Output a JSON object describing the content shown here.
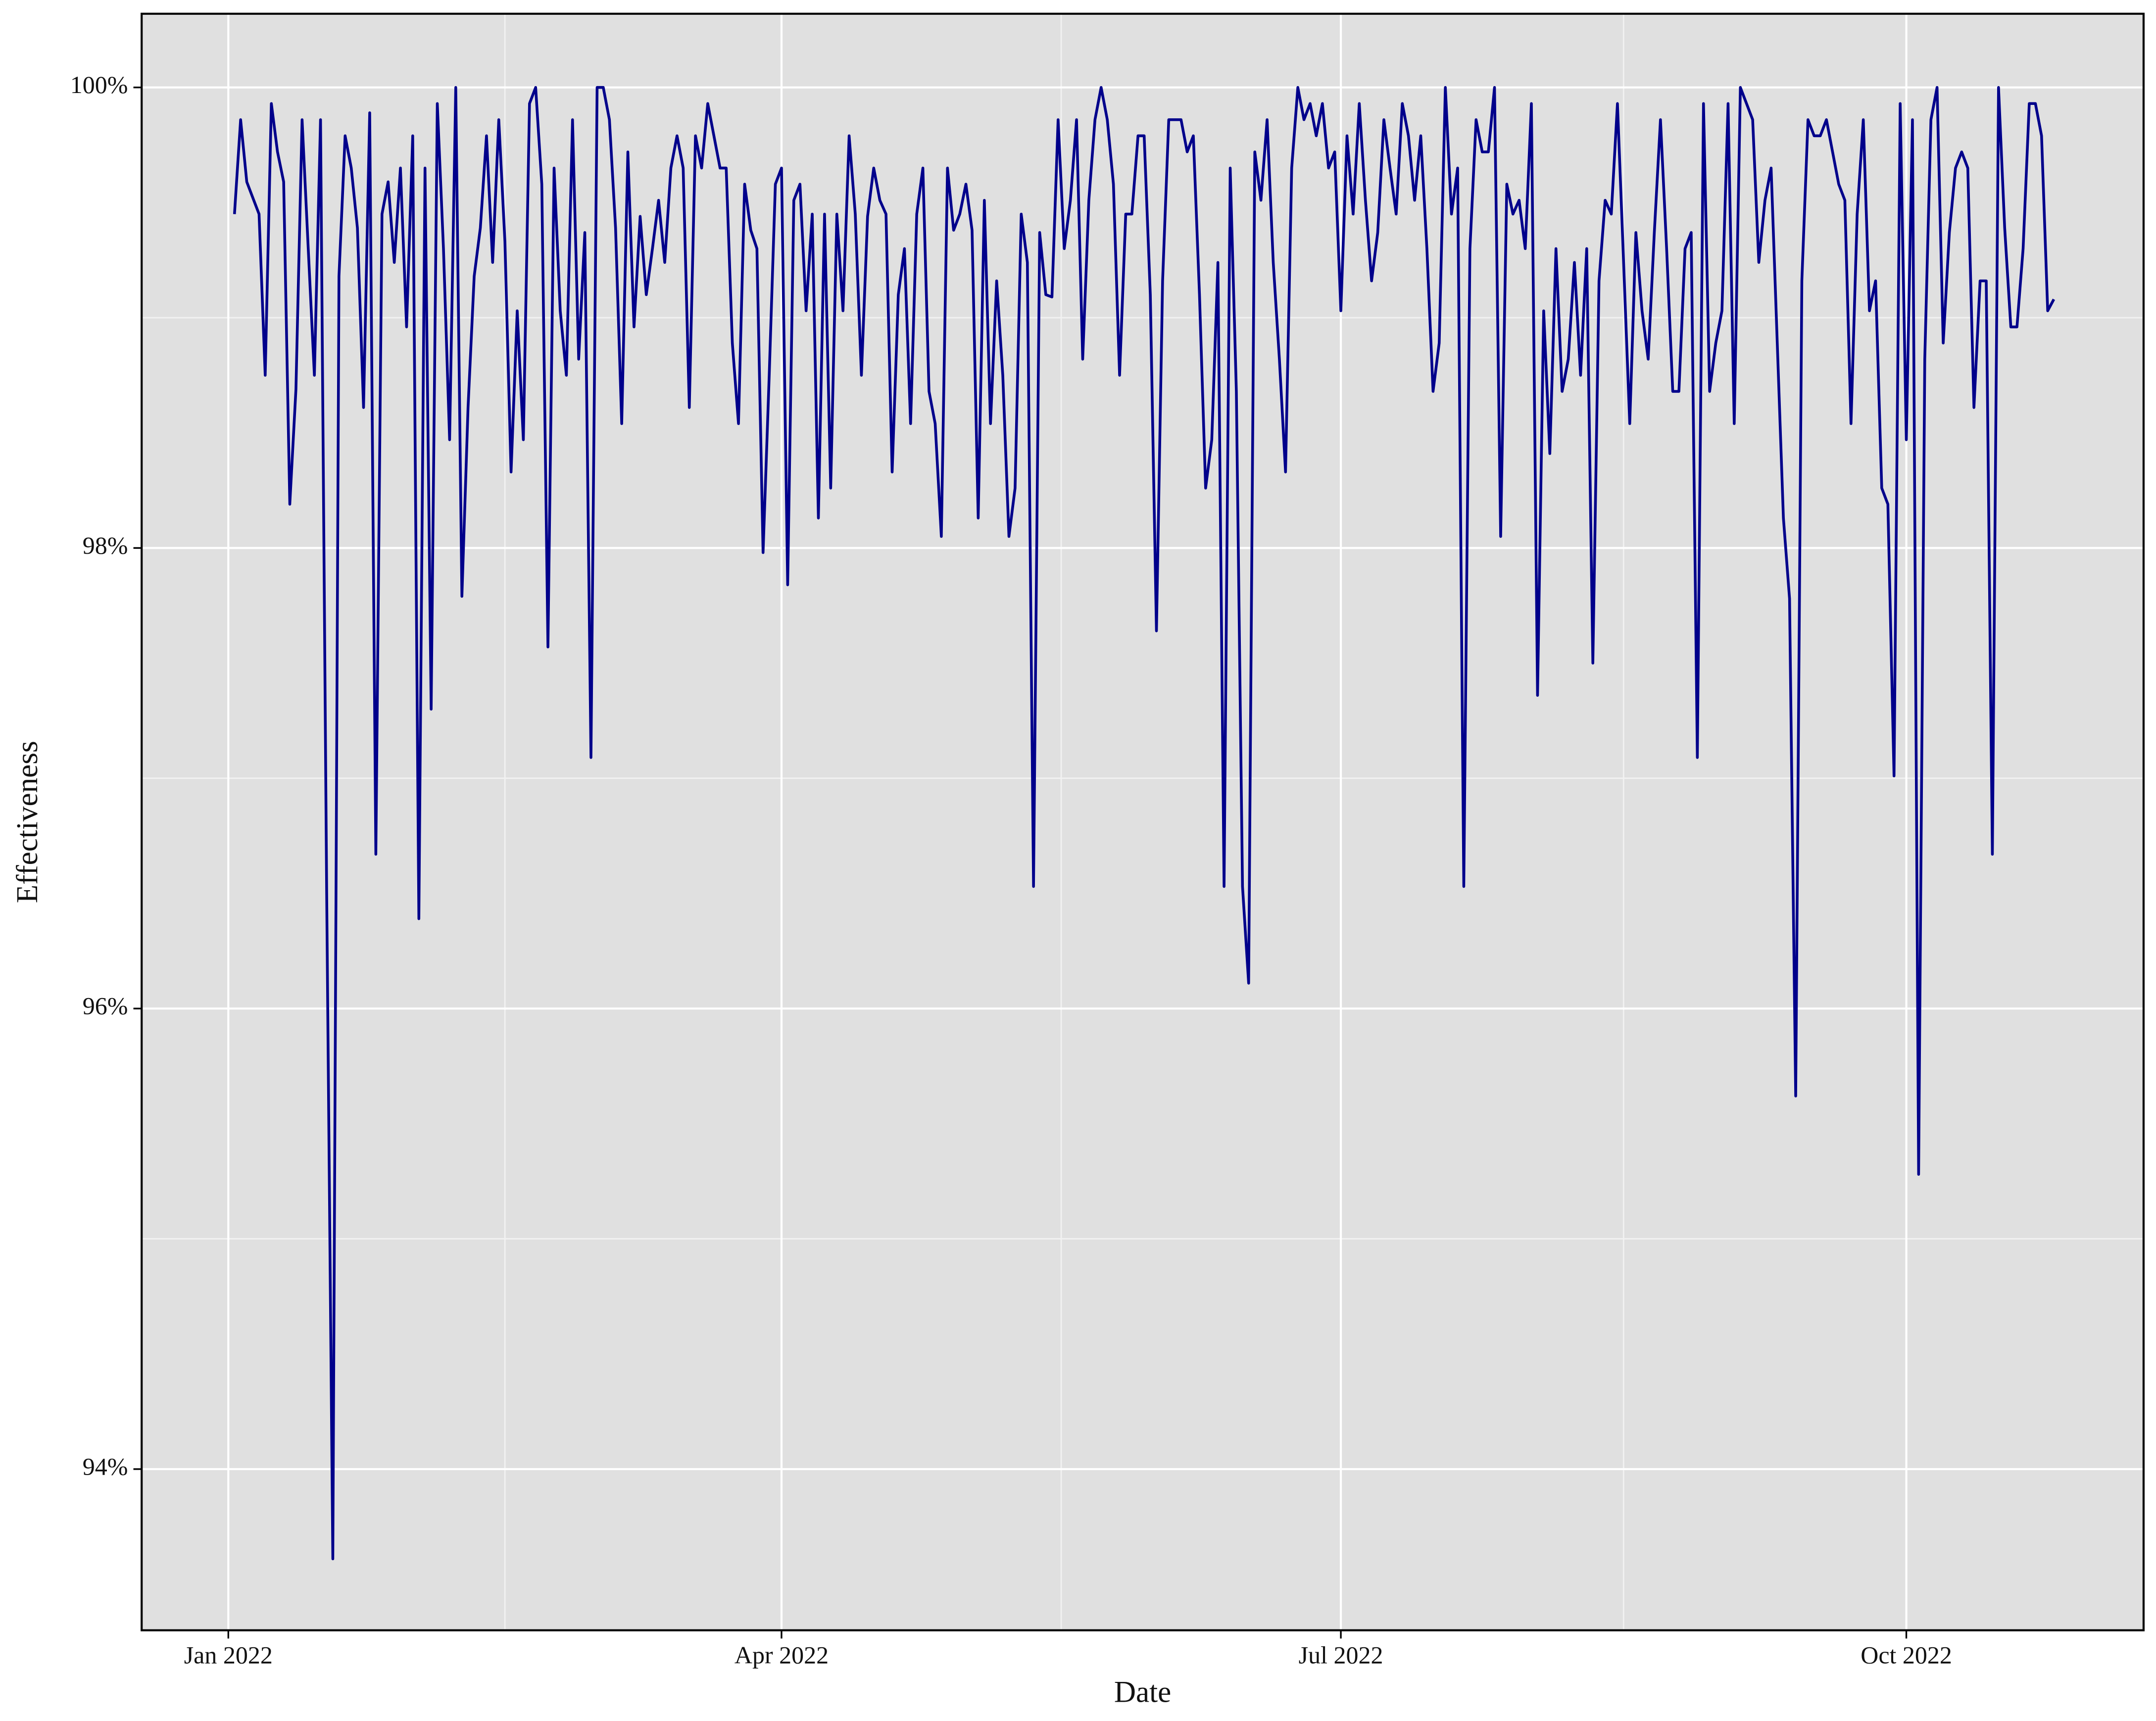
{
  "chart_data": {
    "type": "line",
    "x_label": "Date",
    "y_label": "Effectiveness",
    "color": "#00008b",
    "grid": true,
    "xlim": [
      -14.1,
      311.6
    ],
    "xticks": [
      {
        "value": 0,
        "label": "Jan 2022"
      },
      {
        "value": 90,
        "label": "Apr 2022"
      },
      {
        "value": 181,
        "label": "Jul 2022"
      },
      {
        "value": 273,
        "label": "Oct 2022"
      }
    ],
    "ylim": [
      93.3,
      100.32
    ],
    "yticks": [
      {
        "value": 94,
        "label": "94%"
      },
      {
        "value": 96,
        "label": "96%"
      },
      {
        "value": 98,
        "label": "98%"
      },
      {
        "value": 100,
        "label": "100%"
      }
    ],
    "x": [
      1,
      2,
      3,
      4,
      5,
      6,
      7,
      8,
      9,
      10,
      11,
      12,
      13,
      14,
      15,
      16,
      17,
      18,
      19,
      20,
      21,
      22,
      23,
      24,
      25,
      26,
      27,
      28,
      29,
      30,
      31,
      32,
      33,
      34,
      35,
      36,
      37,
      38,
      39,
      40,
      41,
      42,
      43,
      44,
      45,
      46,
      47,
      48,
      49,
      50,
      51,
      52,
      53,
      54,
      55,
      56,
      57,
      58,
      59,
      60,
      61,
      62,
      63,
      64,
      65,
      66,
      67,
      68,
      69,
      70,
      71,
      72,
      73,
      74,
      75,
      76,
      77,
      78,
      79,
      80,
      81,
      82,
      83,
      84,
      85,
      86,
      87,
      88,
      89,
      90,
      91,
      92,
      93,
      94,
      95,
      96,
      97,
      98,
      99,
      100,
      101,
      102,
      103,
      104,
      105,
      106,
      107,
      108,
      109,
      110,
      111,
      112,
      113,
      114,
      115,
      116,
      117,
      118,
      119,
      120,
      121,
      122,
      123,
      124,
      125,
      126,
      127,
      128,
      129,
      130,
      131,
      132,
      133,
      134,
      135,
      136,
      137,
      138,
      139,
      140,
      141,
      142,
      143,
      144,
      145,
      146,
      147,
      148,
      149,
      150,
      151,
      152,
      153,
      154,
      155,
      156,
      157,
      158,
      159,
      160,
      161,
      162,
      163,
      164,
      165,
      166,
      167,
      168,
      169,
      170,
      171,
      172,
      173,
      174,
      175,
      176,
      177,
      178,
      179,
      180,
      181,
      182,
      183,
      184,
      185,
      186,
      187,
      188,
      189,
      190,
      191,
      192,
      193,
      194,
      195,
      196,
      197,
      198,
      199,
      200,
      201,
      202,
      203,
      204,
      205,
      206,
      207,
      208,
      209,
      210,
      211,
      212,
      213,
      214,
      215,
      216,
      217,
      218,
      219,
      220,
      221,
      222,
      223,
      224,
      225,
      226,
      227,
      228,
      229,
      230,
      231,
      232,
      233,
      234,
      235,
      236,
      237,
      238,
      239,
      240,
      241,
      242,
      243,
      244,
      245,
      246,
      247,
      248,
      249,
      250,
      251,
      252,
      253,
      254,
      255,
      256,
      257,
      258,
      259,
      260,
      261,
      262,
      263,
      264,
      265,
      266,
      267,
      268,
      269,
      270,
      271,
      272,
      273,
      274,
      275,
      276,
      277,
      278,
      279,
      280,
      281,
      282,
      283,
      284,
      285,
      286,
      287,
      288,
      289,
      290,
      291,
      292,
      293,
      294,
      295,
      296,
      297
    ],
    "values": [
      99.45,
      99.86,
      99.59,
      99.52,
      99.45,
      98.75,
      99.93,
      99.72,
      99.59,
      98.19,
      98.69,
      99.86,
      99.3,
      98.75,
      99.86,
      96.5,
      93.61,
      99.18,
      99.79,
      99.65,
      99.39,
      98.61,
      99.89,
      96.67,
      99.45,
      99.59,
      99.24,
      99.65,
      98.96,
      99.79,
      96.39,
      99.65,
      97.3,
      99.93,
      99.3,
      98.47,
      100,
      97.79,
      98.61,
      99.18,
      99.39,
      99.79,
      99.24,
      99.86,
      99.33,
      98.33,
      99.03,
      98.47,
      99.93,
      100,
      99.58,
      97.57,
      99.65,
      99.03,
      98.75,
      99.86,
      98.82,
      99.37,
      97.09,
      100,
      100,
      99.86,
      99.39,
      98.54,
      99.72,
      98.96,
      99.44,
      99.1,
      99.3,
      99.51,
      99.24,
      99.65,
      99.79,
      99.65,
      98.61,
      99.79,
      99.65,
      99.93,
      99.79,
      99.65,
      99.65,
      98.89,
      98.54,
      99.58,
      99.38,
      99.3,
      97.98,
      98.75,
      99.58,
      99.65,
      97.84,
      99.51,
      99.58,
      99.03,
      99.45,
      98.13,
      99.45,
      98.26,
      99.45,
      99.03,
      99.79,
      99.45,
      98.75,
      99.44,
      99.65,
      99.51,
      99.45,
      98.33,
      99.1,
      99.3,
      98.54,
      99.45,
      99.65,
      98.68,
      98.54,
      98.05,
      99.65,
      99.38,
      99.45,
      99.58,
      99.38,
      98.13,
      99.51,
      98.54,
      99.16,
      98.75,
      98.05,
      98.26,
      99.45,
      99.24,
      96.53,
      99.37,
      99.1,
      99.09,
      99.86,
      99.3,
      99.51,
      99.86,
      98.82,
      99.51,
      99.86,
      100,
      99.86,
      99.58,
      98.75,
      99.45,
      99.45,
      99.79,
      99.79,
      99.1,
      97.64,
      99.16,
      99.86,
      99.86,
      99.86,
      99.72,
      99.79,
      99.1,
      98.26,
      98.47,
      99.24,
      96.53,
      99.65,
      98.68,
      96.53,
      96.11,
      99.72,
      99.51,
      99.86,
      99.24,
      98.82,
      98.33,
      99.65,
      100,
      99.86,
      99.93,
      99.79,
      99.93,
      99.65,
      99.72,
      99.03,
      99.79,
      99.45,
      99.93,
      99.51,
      99.16,
      99.37,
      99.86,
      99.65,
      99.45,
      99.93,
      99.79,
      99.51,
      99.79,
      99.3,
      98.68,
      98.89,
      100,
      99.45,
      99.65,
      96.53,
      99.3,
      99.86,
      99.72,
      99.72,
      100,
      98.05,
      99.58,
      99.45,
      99.51,
      99.3,
      99.93,
      97.36,
      99.03,
      98.41,
      99.3,
      98.68,
      98.82,
      99.24,
      98.75,
      99.3,
      97.5,
      99.16,
      99.51,
      99.45,
      99.93,
      99.24,
      98.54,
      99.37,
      99.03,
      98.82,
      99.37,
      99.86,
      99.3,
      98.68,
      98.68,
      99.3,
      99.37,
      97.09,
      99.93,
      98.68,
      98.89,
      99.03,
      99.93,
      98.54,
      100,
      99.93,
      99.86,
      99.24,
      99.51,
      99.65,
      98.89,
      98.13,
      97.78,
      95.62,
      99.16,
      99.86,
      99.79,
      99.79,
      99.86,
      99.72,
      99.58,
      99.51,
      98.54,
      99.45,
      99.86,
      99.03,
      99.16,
      98.26,
      98.19,
      97.01,
      99.93,
      98.47,
      99.86,
      95.28,
      98.82,
      99.86,
      100,
      98.89,
      99.37,
      99.65,
      99.72,
      99.65,
      98.61,
      99.16,
      99.16,
      96.67,
      100,
      99.39,
      98.96,
      98.96,
      99.3,
      99.93,
      99.93,
      99.79,
      99.03,
      99.08
    ]
  }
}
